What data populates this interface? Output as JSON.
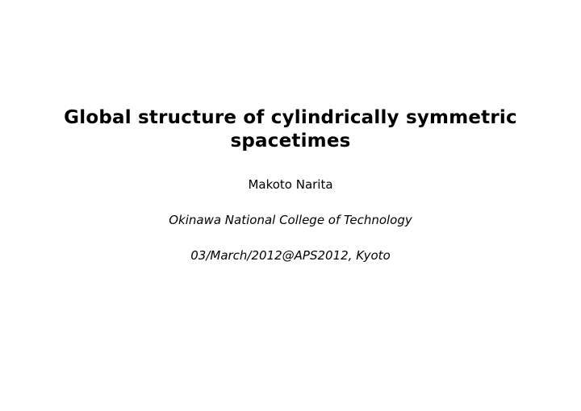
{
  "slide": {
    "title_line1": "Global structure of cylindrically symmetric",
    "title_line2": "spacetimes",
    "author": "Makoto Narita",
    "affiliation": "Okinawa National College of Technology",
    "date_venue": "03/March/2012@APS2012, Kyoto"
  },
  "style": {
    "background_color": "#ffffff",
    "text_color": "#000000",
    "title_fontsize": 23,
    "body_fontsize": 15,
    "title_weight": "bold",
    "affiliation_style": "italic"
  }
}
